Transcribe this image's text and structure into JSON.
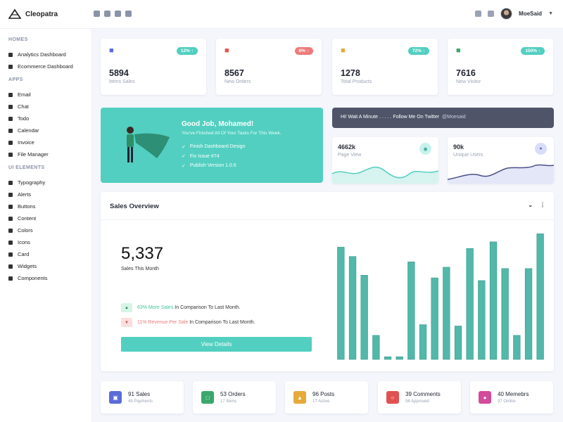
{
  "app": {
    "name": "Cleopatra",
    "user": "MoeSaid"
  },
  "sidebar": {
    "sections": [
      {
        "title": "HOMES",
        "items": [
          "Analytics Dashboard",
          "Ecommerce Dashboard"
        ]
      },
      {
        "title": "APPS",
        "items": [
          "Email",
          "Chat",
          "Todo",
          "Calendar",
          "Invoice",
          "File Manager"
        ]
      },
      {
        "title": "UI ELEMENTS",
        "items": [
          "Typography",
          "Alerts",
          "Buttons",
          "Content",
          "Colors",
          "Icons",
          "Card",
          "Widgets",
          "Components"
        ]
      }
    ]
  },
  "stats": [
    {
      "value": "5894",
      "label": "Items Sales",
      "badge": "12%",
      "badge_color": "#52cfc0",
      "icon": "cart-icon",
      "icon_color": "#5b6bd8"
    },
    {
      "value": "8567",
      "label": "New Orders",
      "badge": "6%",
      "badge_color": "#ee7b7b",
      "icon": "store-icon",
      "icon_color": "#e0524f"
    },
    {
      "value": "1278",
      "label": "Total Products",
      "badge": "72%",
      "badge_color": "#52cfc0",
      "icon": "sitemap-icon",
      "icon_color": "#e6a93a"
    },
    {
      "value": "7616",
      "label": "New Visitor",
      "badge": "150%",
      "badge_color": "#52cfc0",
      "icon": "users-icon",
      "icon_color": "#3aa86b"
    }
  ],
  "hero": {
    "title": "Good Job, Mohamed!",
    "subtitle": "You've Finished All Of Your Tasks For This Week.",
    "tasks": [
      "Finish Dashboard Design",
      "Fix Issue #74",
      "Publish Version 1.0.6"
    ]
  },
  "twitter": {
    "text": "Hi! Wait A Minute . . . . . Follow Me On Twitter",
    "handle": "@Moesaid"
  },
  "mini_cards": [
    {
      "value": "4662k",
      "label": "Page View",
      "icon": "eye-icon",
      "color": "#52cfc0"
    },
    {
      "value": "90k",
      "label": "Unique Users",
      "icon": "user-icon",
      "color": "#5b6bd8"
    }
  ],
  "sales": {
    "title": "Sales Overview",
    "value": "5,337",
    "label": "Sales This Month",
    "up": {
      "highlight": "63% More Sales",
      "rest": " In Comparison To Last Month."
    },
    "down": {
      "highlight": "11% Revenue Per Sale",
      "rest": " In Comparison To Last Month."
    },
    "button": "View Details"
  },
  "chart_data": {
    "type": "bar",
    "values": [
      84,
      77,
      63,
      18,
      2,
      2,
      73,
      26,
      61,
      69,
      25,
      83,
      59,
      88,
      68,
      18,
      68,
      94
    ],
    "ylim": [
      0,
      100
    ],
    "color": "#52b8a9"
  },
  "summary": [
    {
      "title": "91 Sales",
      "sub": "49 Payments",
      "color": "#5b6bd8",
      "icon": "wallet-icon"
    },
    {
      "title": "53 Orders",
      "sub": "17 Items",
      "color": "#3aa86b",
      "icon": "cart-icon"
    },
    {
      "title": "96 Posts",
      "sub": "17 Active",
      "color": "#e6a93a",
      "icon": "thumbs-up-icon"
    },
    {
      "title": "39 Comments",
      "sub": "58 Approved",
      "color": "#e0524f",
      "icon": "comment-icon"
    },
    {
      "title": "40 Memebrs",
      "sub": "37 Online",
      "color": "#d34b9a",
      "icon": "user-icon"
    }
  ]
}
